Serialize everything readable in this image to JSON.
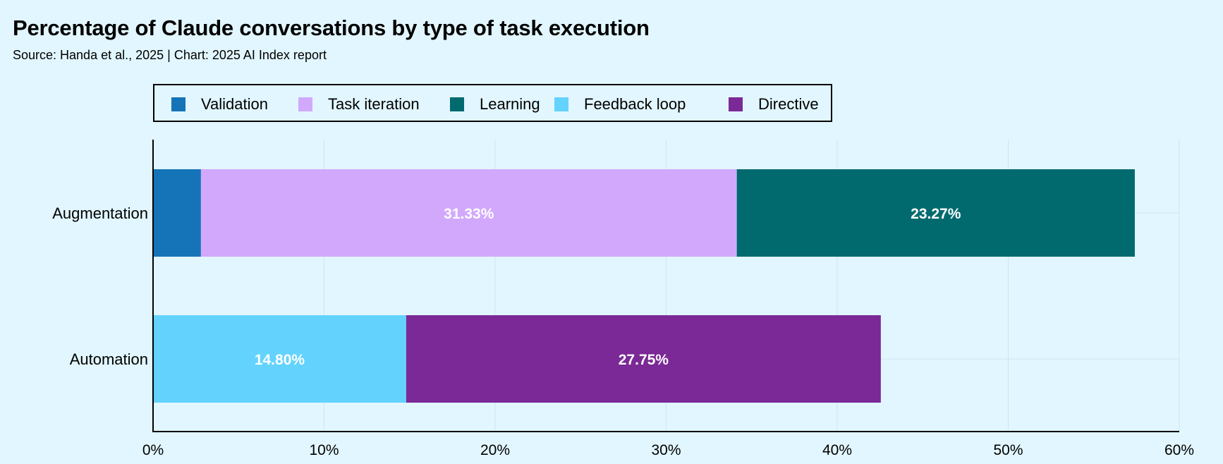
{
  "title": "Percentage of Claude conversations by type of task execution",
  "subtitle": "Source: Handa et al., 2025 | Chart: 2025 AI Index report",
  "colors": {
    "Validation": "#1474b7",
    "Task iteration": "#d2a8fd",
    "Learning": "#006a6f",
    "Feedback loop": "#63d3fd",
    "Directive": "#7b2996"
  },
  "chart_data": {
    "type": "bar",
    "orientation": "horizontal",
    "stacked": true,
    "title": "Percentage of Claude conversations by type of task execution",
    "subtitle": "Source: Handa et al., 2025 | Chart: 2025 AI Index report",
    "categories": [
      "Augmentation",
      "Automation"
    ],
    "series": [
      {
        "name": "Validation",
        "values": [
          2.8,
          0
        ]
      },
      {
        "name": "Task iteration",
        "values": [
          31.33,
          0
        ]
      },
      {
        "name": "Learning",
        "values": [
          23.27,
          0
        ]
      },
      {
        "name": "Feedback loop",
        "values": [
          0,
          14.8
        ]
      },
      {
        "name": "Directive",
        "values": [
          0,
          27.75
        ]
      }
    ],
    "data_labels": {
      "Task iteration": [
        "31.33%",
        ""
      ],
      "Learning": [
        "23.27%",
        ""
      ],
      "Feedback loop": [
        "",
        "14.80%"
      ],
      "Directive": [
        "",
        "27.75%"
      ]
    },
    "xlim": [
      0,
      60
    ],
    "xticks": [
      0,
      10,
      20,
      30,
      40,
      50,
      60
    ],
    "xtick_labels": [
      "0%",
      "10%",
      "20%",
      "30%",
      "40%",
      "50%",
      "60%"
    ],
    "grid": true,
    "legend_position": "top"
  }
}
